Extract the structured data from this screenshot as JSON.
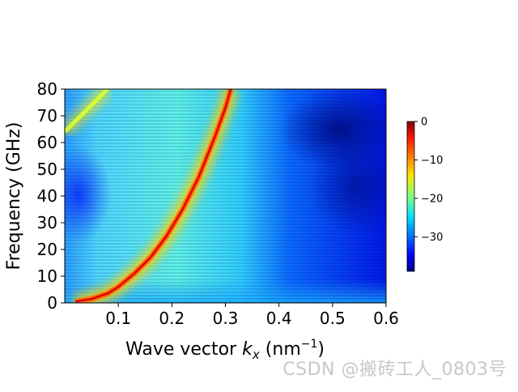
{
  "chart_data": {
    "type": "heatmap",
    "title": "",
    "xlabel": "Wave vector k_x (nm^-1)",
    "ylabel": "Frequency (GHz)",
    "xlim": [
      0.0,
      0.6
    ],
    "ylim": [
      0,
      80
    ],
    "x_ticks": [
      "0.1",
      "0.2",
      "0.3",
      "0.4",
      "0.5",
      "0.6"
    ],
    "y_ticks": [
      "0",
      "10",
      "20",
      "30",
      "40",
      "50",
      "60",
      "70",
      "80"
    ],
    "colormap": "jet",
    "colorbar": {
      "range": [
        -39,
        0
      ],
      "ticks": [
        "0",
        "−10",
        "−20",
        "−30"
      ]
    },
    "dispersion_branch": {
      "description": "bright (0 dB) dispersion curve",
      "kx": [
        0.02,
        0.05,
        0.08,
        0.1,
        0.13,
        0.16,
        0.19,
        0.22,
        0.25,
        0.28,
        0.3,
        0.31
      ],
      "freq": [
        0.5,
        1.5,
        3.5,
        6,
        11,
        17,
        25,
        35,
        47,
        62,
        73,
        80
      ]
    },
    "secondary_branch": {
      "description": "faint branch at top-left",
      "kx": [
        0.0,
        0.02,
        0.04,
        0.06,
        0.08
      ],
      "freq": [
        64,
        68,
        72,
        76,
        80
      ]
    }
  },
  "watermark": "CSDN @搬砖工人_0803号"
}
